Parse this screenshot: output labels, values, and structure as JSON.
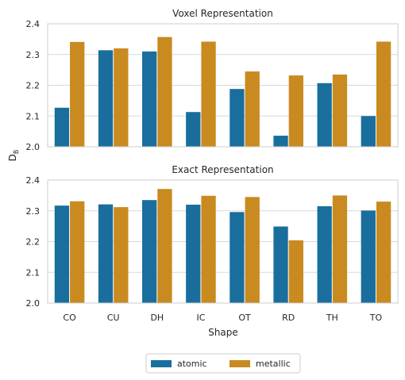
{
  "chart_data": {
    "type": "bar",
    "ylabel": "D",
    "ylabel_subscript": "B",
    "xlabel": "Shape",
    "categories": [
      "CO",
      "CU",
      "DH",
      "IC",
      "OT",
      "RD",
      "TH",
      "TO"
    ],
    "ylim": [
      2.0,
      2.4
    ],
    "yticks": [
      "2.0",
      "2.1",
      "2.2",
      "2.3",
      "2.4"
    ],
    "grid": "y",
    "legend_position": "bottom-center",
    "colors": {
      "atomic": "#1a6e9e",
      "metallic": "#c98a20"
    },
    "legend": [
      "atomic",
      "metallic"
    ],
    "panels": [
      {
        "title": "Voxel Representation",
        "series": [
          {
            "name": "atomic",
            "values": [
              2.127,
              2.314,
              2.31,
              2.113,
              2.188,
              2.036,
              2.207,
              2.1
            ]
          },
          {
            "name": "metallic",
            "values": [
              2.341,
              2.32,
              2.357,
              2.342,
              2.245,
              2.232,
              2.235,
              2.342
            ]
          }
        ]
      },
      {
        "title": "Exact Representation",
        "series": [
          {
            "name": "atomic",
            "values": [
              2.317,
              2.321,
              2.335,
              2.32,
              2.296,
              2.249,
              2.315,
              2.301
            ]
          },
          {
            "name": "metallic",
            "values": [
              2.331,
              2.312,
              2.371,
              2.349,
              2.345,
              2.204,
              2.35,
              2.33
            ]
          }
        ]
      }
    ]
  }
}
